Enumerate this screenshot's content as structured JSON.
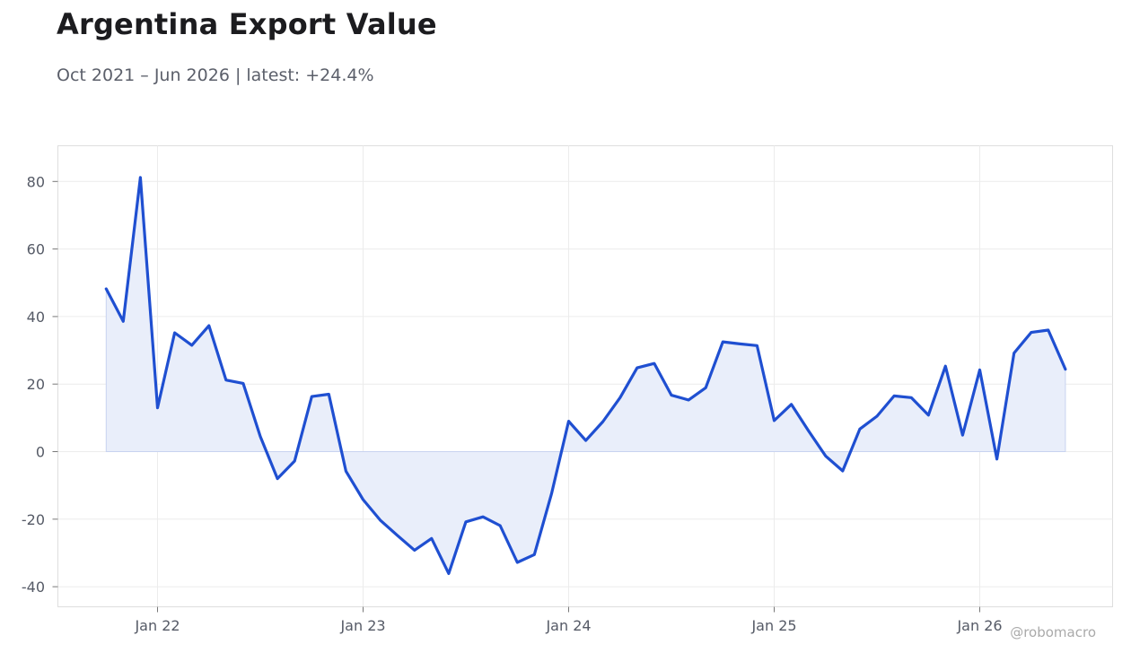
{
  "chart_data": {
    "type": "area",
    "title": "Argentina Export Value",
    "subtitle": "Oct 2021 – Jun 2026 | latest: +24.4%",
    "xlabel": "",
    "ylabel": "",
    "ylim": [
      -45,
      90
    ],
    "y_ticks": [
      80,
      60,
      40,
      20,
      0,
      -20,
      -40
    ],
    "y_tick_labels": [
      "80",
      "60",
      "40",
      "20",
      "0",
      "-20",
      "-40"
    ],
    "x_ticks": [
      "2022-01",
      "2023-01",
      "2024-01",
      "2025-01",
      "2026-01"
    ],
    "x_tick_labels": [
      "Jan 22",
      "Jan 23",
      "Jan 24",
      "Jan 25",
      "Jan 26"
    ],
    "grid": true,
    "series": [
      {
        "color": "#1f4fd1",
        "fill": "#e9eefa",
        "points": [
          [
            "2021-10",
            48.2
          ],
          [
            "2021-11",
            38.6
          ],
          [
            "2021-12",
            81.2
          ],
          [
            "2022-01",
            13.0
          ],
          [
            "2022-02",
            35.2
          ],
          [
            "2022-03",
            31.5
          ],
          [
            "2022-04",
            37.3
          ],
          [
            "2022-05",
            21.2
          ],
          [
            "2022-06",
            20.2
          ],
          [
            "2022-07",
            4.5
          ],
          [
            "2022-08",
            -8.0
          ],
          [
            "2022-09",
            -2.8
          ],
          [
            "2022-10",
            16.3
          ],
          [
            "2022-11",
            17.0
          ],
          [
            "2022-12",
            -5.8
          ],
          [
            "2023-01",
            -14.2
          ],
          [
            "2023-02",
            -20.3
          ],
          [
            "2023-03",
            -24.8
          ],
          [
            "2023-04",
            -29.2
          ],
          [
            "2023-05",
            -25.7
          ],
          [
            "2023-06",
            -36.1
          ],
          [
            "2023-07",
            -20.8
          ],
          [
            "2023-08",
            -19.3
          ],
          [
            "2023-09",
            -21.9
          ],
          [
            "2023-10",
            -32.8
          ],
          [
            "2023-11",
            -30.5
          ],
          [
            "2023-12",
            -12.5
          ],
          [
            "2024-01",
            9.0
          ],
          [
            "2024-02",
            3.3
          ],
          [
            "2024-03",
            8.9
          ],
          [
            "2024-04",
            16.0
          ],
          [
            "2024-05",
            24.8
          ],
          [
            "2024-06",
            26.1
          ],
          [
            "2024-07",
            16.7
          ],
          [
            "2024-08",
            15.3
          ],
          [
            "2024-09",
            18.9
          ],
          [
            "2024-10",
            32.5
          ],
          [
            "2024-11",
            31.9
          ],
          [
            "2024-12",
            31.4
          ],
          [
            "2025-01",
            9.2
          ],
          [
            "2025-02",
            14.0
          ],
          [
            "2025-03",
            6.2
          ],
          [
            "2025-04",
            -1.3
          ],
          [
            "2025-05",
            -5.7
          ],
          [
            "2025-06",
            6.7
          ],
          [
            "2025-07",
            10.5
          ],
          [
            "2025-08",
            16.5
          ],
          [
            "2025-09",
            16.0
          ],
          [
            "2025-10",
            10.8
          ],
          [
            "2025-11",
            25.3
          ],
          [
            "2025-12",
            4.9
          ],
          [
            "2026-01",
            24.2
          ],
          [
            "2026-02",
            -2.2
          ],
          [
            "2026-03",
            29.2
          ],
          [
            "2026-04",
            35.3
          ],
          [
            "2026-05",
            36.0
          ],
          [
            "2026-06",
            24.4
          ]
        ]
      }
    ]
  },
  "watermark": "@robomacro"
}
